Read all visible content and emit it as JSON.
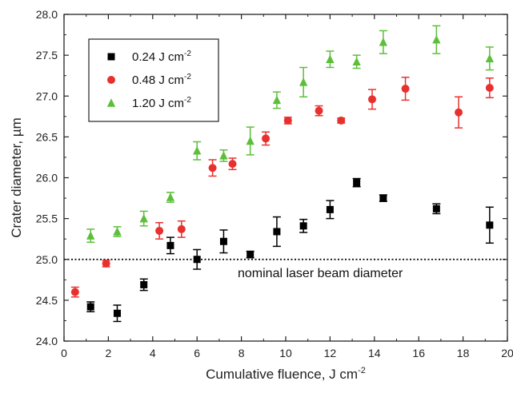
{
  "chart_data": {
    "type": "scatter",
    "xlabel": "Cumulative fluence, J cm",
    "xlabel_sup": "-2",
    "ylabel": "Crater diameter, µm",
    "xlim": [
      0,
      20
    ],
    "ylim": [
      24.0,
      28.0
    ],
    "x_ticks": [
      "0",
      "2",
      "4",
      "6",
      "8",
      "10",
      "12",
      "14",
      "16",
      "18",
      "20"
    ],
    "y_ticks": [
      "24.0",
      "24.5",
      "25.0",
      "25.5",
      "26.0",
      "26.5",
      "27.0",
      "27.5",
      "28.0"
    ],
    "grid": false,
    "legend_position": "top-left",
    "series": [
      {
        "name": "0.24 J cm",
        "name_sup": "-2",
        "color": "#000000",
        "marker": "square",
        "points": [
          {
            "x": 1.2,
            "y": 24.42,
            "err": 0.06
          },
          {
            "x": 2.4,
            "y": 24.34,
            "err": 0.1
          },
          {
            "x": 3.6,
            "y": 24.69,
            "err": 0.07
          },
          {
            "x": 4.8,
            "y": 25.17,
            "err": 0.1
          },
          {
            "x": 6.0,
            "y": 25.0,
            "err": 0.12
          },
          {
            "x": 7.2,
            "y": 25.22,
            "err": 0.14
          },
          {
            "x": 8.4,
            "y": 25.06,
            "err": 0.04
          },
          {
            "x": 9.6,
            "y": 25.34,
            "err": 0.18
          },
          {
            "x": 10.8,
            "y": 25.41,
            "err": 0.08
          },
          {
            "x": 12.0,
            "y": 25.61,
            "err": 0.11
          },
          {
            "x": 13.2,
            "y": 25.94,
            "err": 0.05
          },
          {
            "x": 14.4,
            "y": 25.75,
            "err": 0.04
          },
          {
            "x": 16.8,
            "y": 25.62,
            "err": 0.06
          },
          {
            "x": 19.2,
            "y": 25.42,
            "err": 0.22
          }
        ]
      },
      {
        "name": "0.48 J cm",
        "name_sup": "-2",
        "color": "#e8312f",
        "marker": "circle",
        "points": [
          {
            "x": 0.5,
            "y": 24.6,
            "err": 0.06
          },
          {
            "x": 1.9,
            "y": 24.95,
            "err": 0.04
          },
          {
            "x": 4.3,
            "y": 25.35,
            "err": 0.1
          },
          {
            "x": 5.3,
            "y": 25.37,
            "err": 0.1
          },
          {
            "x": 6.7,
            "y": 26.12,
            "err": 0.1
          },
          {
            "x": 7.6,
            "y": 26.17,
            "err": 0.07
          },
          {
            "x": 9.1,
            "y": 26.48,
            "err": 0.08
          },
          {
            "x": 10.1,
            "y": 26.7,
            "err": 0.04
          },
          {
            "x": 11.5,
            "y": 26.82,
            "err": 0.06
          },
          {
            "x": 12.5,
            "y": 26.7,
            "err": 0.03
          },
          {
            "x": 13.9,
            "y": 26.96,
            "err": 0.12
          },
          {
            "x": 15.4,
            "y": 27.09,
            "err": 0.14
          },
          {
            "x": 17.8,
            "y": 26.8,
            "err": 0.19
          },
          {
            "x": 19.2,
            "y": 27.1,
            "err": 0.12
          }
        ]
      },
      {
        "name": "1.20 J cm",
        "name_sup": "-2",
        "color": "#5cbf3a",
        "marker": "triangle",
        "points": [
          {
            "x": 1.2,
            "y": 25.29,
            "err": 0.08
          },
          {
            "x": 2.4,
            "y": 25.34,
            "err": 0.06
          },
          {
            "x": 3.6,
            "y": 25.5,
            "err": 0.09
          },
          {
            "x": 4.8,
            "y": 25.76,
            "err": 0.06
          },
          {
            "x": 6.0,
            "y": 26.33,
            "err": 0.11
          },
          {
            "x": 7.2,
            "y": 26.27,
            "err": 0.07
          },
          {
            "x": 8.4,
            "y": 26.45,
            "err": 0.17
          },
          {
            "x": 9.6,
            "y": 26.95,
            "err": 0.1
          },
          {
            "x": 10.8,
            "y": 27.17,
            "err": 0.18
          },
          {
            "x": 12.0,
            "y": 27.45,
            "err": 0.1
          },
          {
            "x": 13.2,
            "y": 27.42,
            "err": 0.08
          },
          {
            "x": 14.4,
            "y": 27.66,
            "err": 0.14
          },
          {
            "x": 16.8,
            "y": 27.69,
            "err": 0.17
          },
          {
            "x": 19.2,
            "y": 27.46,
            "err": 0.14
          }
        ]
      }
    ],
    "reference_line": {
      "y": 25.0,
      "style": "dotted",
      "label": "nominal laser beam diameter"
    }
  }
}
